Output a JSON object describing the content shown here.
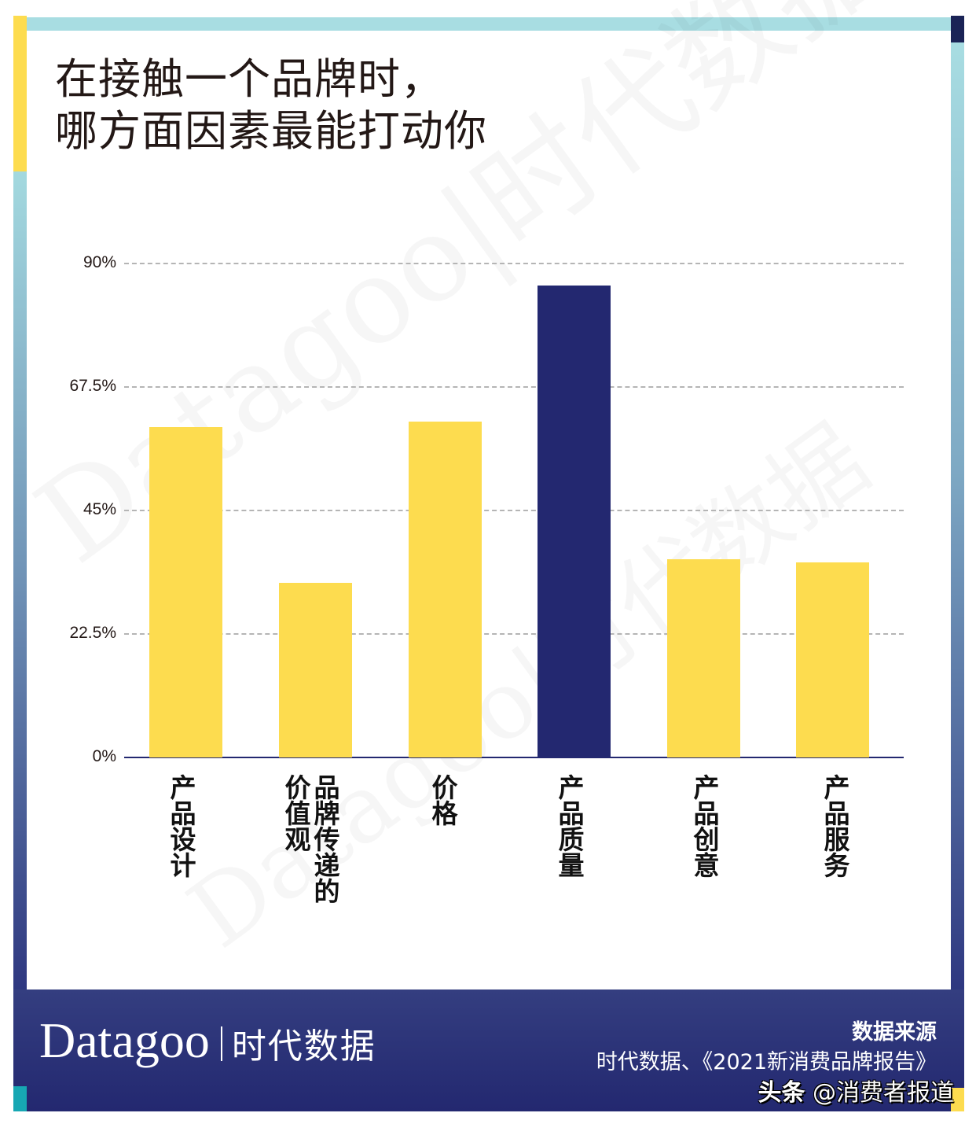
{
  "title": {
    "line1": "在接触一个品牌时，",
    "line2": "哪方面因素最能打动你"
  },
  "watermark": {
    "text": "Datagoo|时代数据"
  },
  "colors": {
    "bar_default": "#fddc4f",
    "bar_highlight": "#232870",
    "frame_top": "#a8dde2",
    "footer": "#232870",
    "accent_yellow": "#fddc4f",
    "accent_teal": "#17a7b3"
  },
  "chart_data": {
    "type": "bar",
    "title": "在接触一个品牌时，哪方面因素最能打动你",
    "xlabel": "",
    "ylabel": "",
    "categories": [
      "产品设计",
      "品牌传递的价值观",
      "价格",
      "产品质量",
      "产品创意",
      "产品服务"
    ],
    "values": [
      60.2,
      31.8,
      61.2,
      86.0,
      36.1,
      35.5
    ],
    "unit": "%",
    "highlight_index": 3,
    "ylim": [
      0,
      90
    ],
    "yticks": [
      "0%",
      "22.5%",
      "45%",
      "67.5%",
      "90%"
    ],
    "grid": true,
    "legend": null
  },
  "axis": {
    "ticks": [
      {
        "label": "90%",
        "value": 90
      },
      {
        "label": "67.5%",
        "value": 67.5
      },
      {
        "label": "45%",
        "value": 45
      },
      {
        "label": "22.5%",
        "value": 22.5
      },
      {
        "label": "0%",
        "value": 0
      }
    ]
  },
  "bars": [
    {
      "label": "产品设计",
      "value": 60.2
    },
    {
      "label": "品牌传递的价值观",
      "value": 31.8
    },
    {
      "label": "价格",
      "value": 61.2
    },
    {
      "label": "产品质量",
      "value": 86.0
    },
    {
      "label": "产品创意",
      "value": 36.1
    },
    {
      "label": "产品服务",
      "value": 35.5
    }
  ],
  "footer": {
    "brand_en": "Datagoo",
    "brand_cn": "时代数据",
    "source_title": "数据来源",
    "source_text": "时代数据、《2021新消费品牌报告》",
    "credit_platform": "头条",
    "credit_handle": "@消费者报道"
  }
}
